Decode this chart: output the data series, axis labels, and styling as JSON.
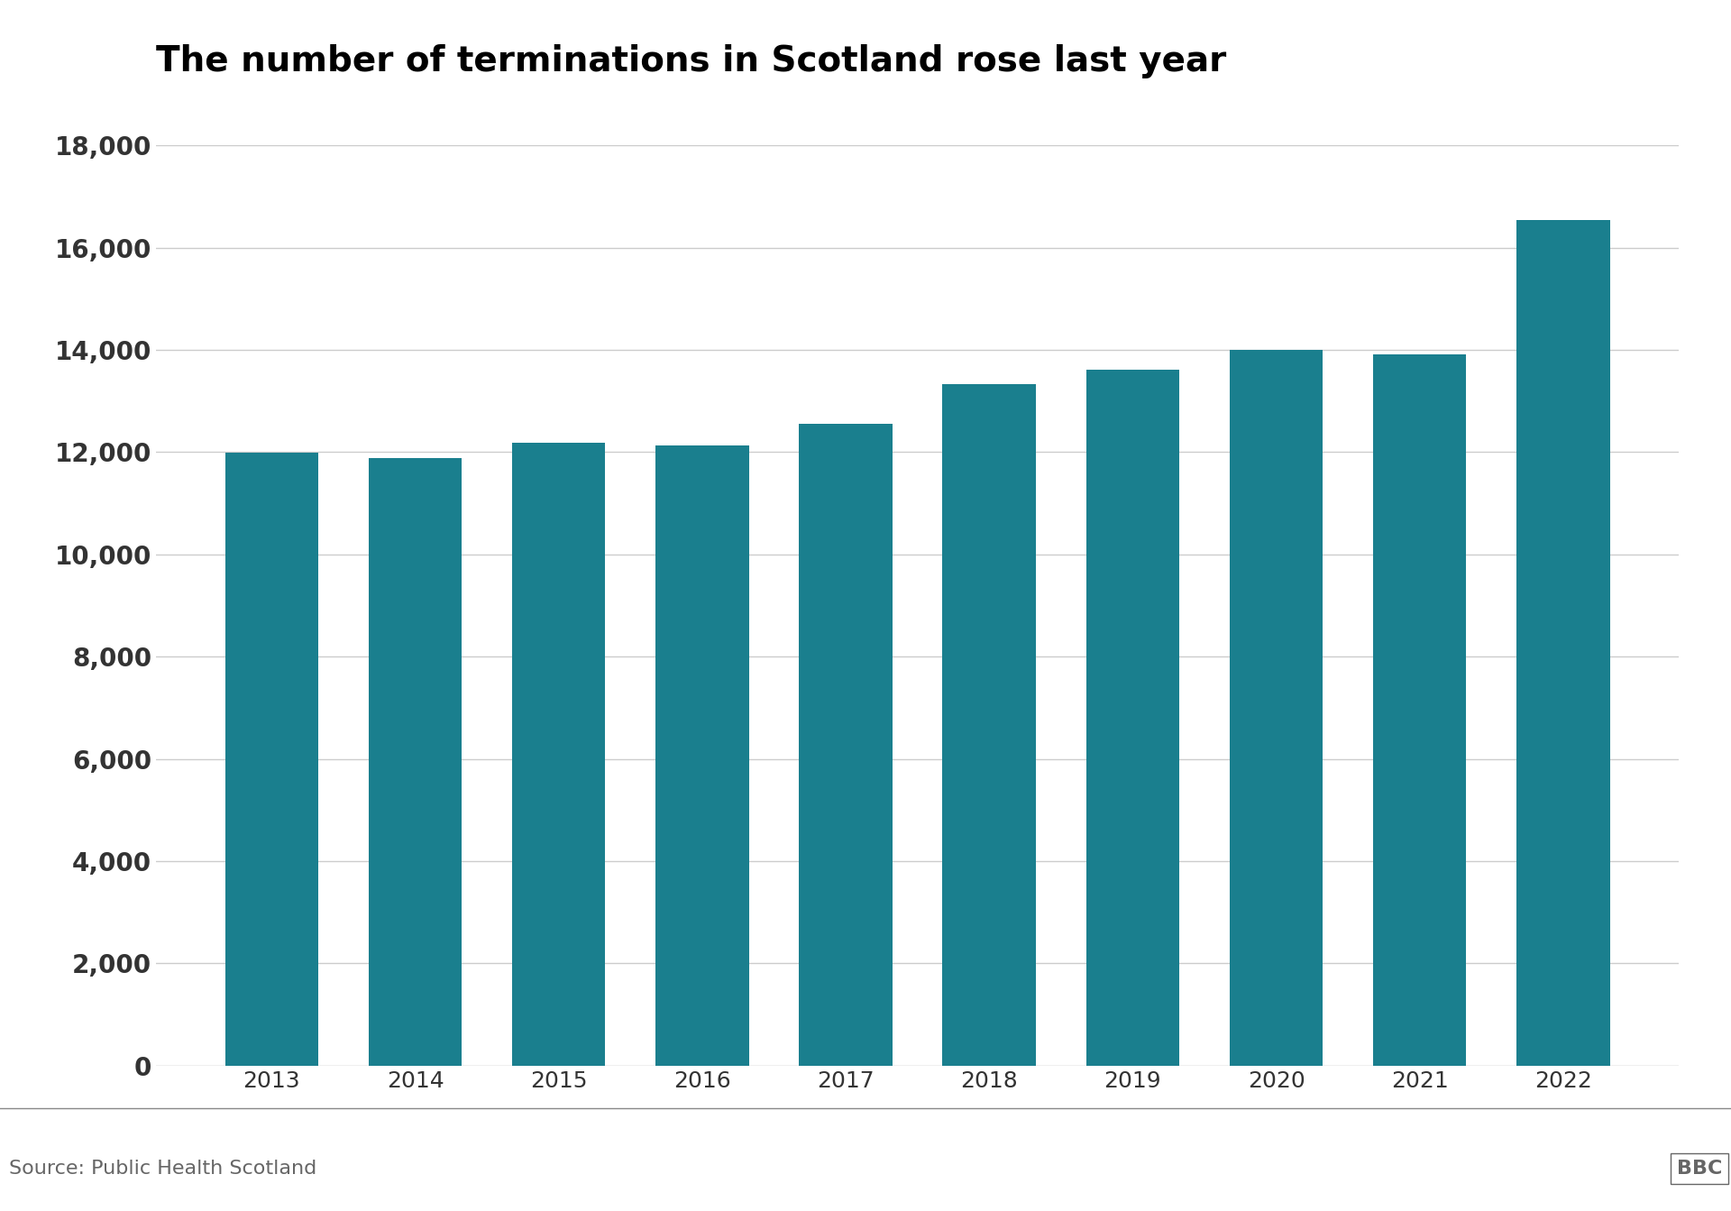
{
  "title": "The number of terminations in Scotland rose last year",
  "categories": [
    "2013",
    "2014",
    "2015",
    "2016",
    "2017",
    "2018",
    "2019",
    "2020",
    "2021",
    "2022"
  ],
  "values": [
    11990,
    11890,
    12190,
    12130,
    12560,
    13330,
    13620,
    14000,
    13920,
    16540
  ],
  "bar_color": "#1a7f8e",
  "background_color": "#ffffff",
  "ylim": [
    0,
    18000
  ],
  "yticks": [
    0,
    2000,
    4000,
    6000,
    8000,
    10000,
    12000,
    14000,
    16000,
    18000
  ],
  "grid_color": "#cccccc",
  "source_text": "Source: Public Health Scotland",
  "source_fontsize": 16,
  "title_fontsize": 28,
  "tick_fontsize": 18,
  "ytick_fontsize": 20,
  "bbc_text": "BBC",
  "bar_width": 0.65
}
